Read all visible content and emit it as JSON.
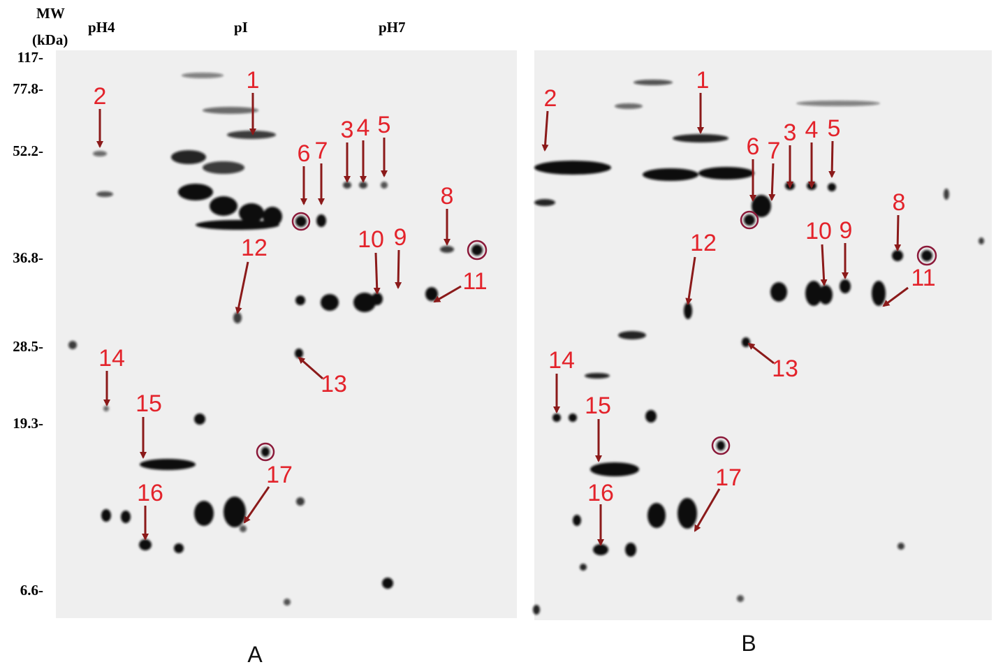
{
  "header": {
    "mw_title": "MW",
    "mw_unit": "(kDa)",
    "ph_labels": [
      "pH4",
      "pI",
      "pH7"
    ]
  },
  "mw_labels": [
    "117-",
    "77.8-",
    "52.2-",
    "36.8-",
    "28.5-",
    "19.3-",
    "6.6-"
  ],
  "panels": [
    {
      "label": "A",
      "spot_labels": [
        "1",
        "2",
        "3",
        "4",
        "5",
        "6",
        "7",
        "8",
        "9",
        "10",
        "11",
        "12",
        "13",
        "14",
        "15",
        "16",
        "17"
      ]
    },
    {
      "label": "B",
      "spot_labels": [
        "1",
        "2",
        "3",
        "4",
        "5",
        "6",
        "7",
        "8",
        "9",
        "10",
        "11",
        "12",
        "13",
        "14",
        "15",
        "16",
        "17"
      ]
    }
  ]
}
